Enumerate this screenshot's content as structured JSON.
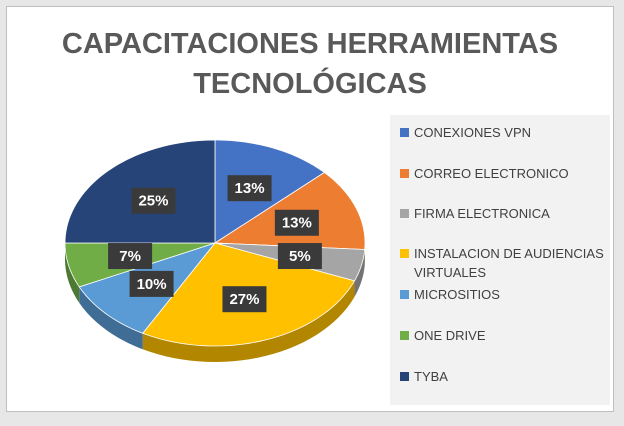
{
  "chart_data": {
    "type": "pie",
    "title": "CAPACITACIONES HERRAMIENTAS TECNOLÓGICAS",
    "categories": [
      "CONEXIONES VPN",
      "CORREO ELECTRONICO",
      "FIRMA ELECTRONICA",
      "INSTALACION DE AUDIENCIAS VIRTUALES",
      "MICROSITIOS",
      "ONE DRIVE",
      "TYBA"
    ],
    "values": [
      13,
      13,
      5,
      27,
      10,
      7,
      25
    ],
    "value_labels": [
      "13%",
      "13%",
      "5%",
      "27%",
      "10%",
      "7%",
      "25%"
    ],
    "colors": [
      "#4472c4",
      "#ed7d31",
      "#a5a5a5",
      "#ffc000",
      "#5b9bd5",
      "#70ad47",
      "#264478"
    ],
    "legend": "right"
  }
}
